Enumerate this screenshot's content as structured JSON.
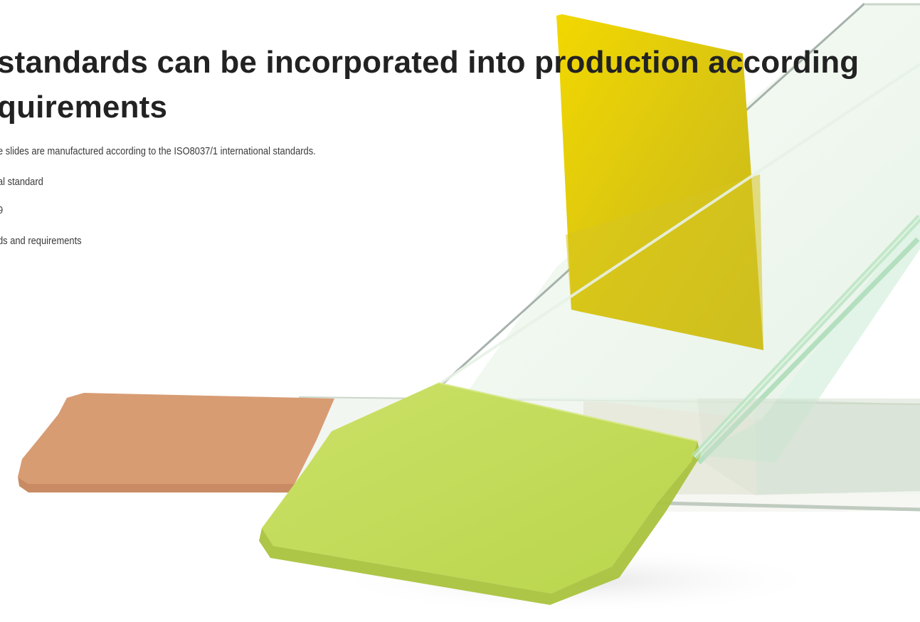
{
  "headline": {
    "line1": "standards can be incorporated into production according",
    "line2": "quirements"
  },
  "descriptions": [
    "e slides are manufactured according to the ISO8037/1 international standards.",
    "al standard",
    "9",
    "ds and requirements"
  ],
  "colors": {
    "headline_text": "#222222",
    "body_text": "#3a3a3a",
    "yellow_tab": "#e0cc10",
    "green_tab": "#c3dc5b",
    "peach_tab": "#d99f76",
    "glass_edge": "#aedcb7"
  }
}
